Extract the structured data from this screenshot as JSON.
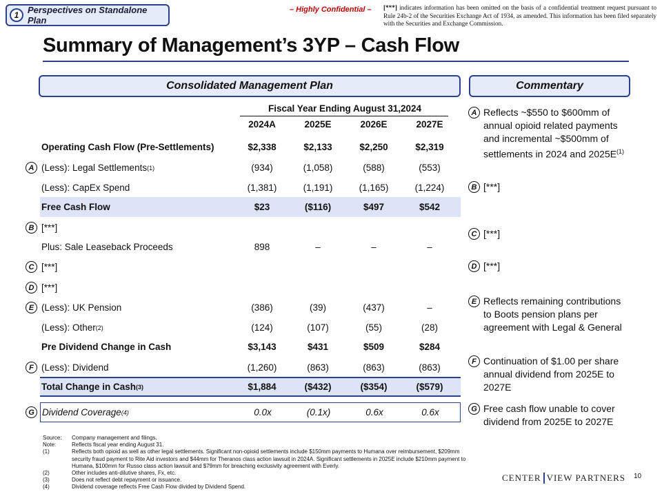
{
  "section": {
    "number": "1",
    "label": "Perspectives on Standalone Plan"
  },
  "confidential": "– Highly Confidential –",
  "notice": {
    "marker": "[***]",
    "text": " indicates information has been omitted on the basis of a confidential treatment request pursuant to Rule 24b-2 of the Securities Exchange Act of 1934, as amended. This information has been filed separately with the Securities and Exchange Commission."
  },
  "title": "Summary of Management’s 3YP – Cash Flow",
  "plan_header": "Consolidated Management Plan",
  "commentary_header": "Commentary",
  "fiscal_year_header": "Fiscal Year Ending August 31,2024",
  "columns": [
    "2024A",
    "2025E",
    "2026E",
    "2027E"
  ],
  "rows": [
    {
      "marker": "",
      "label": "Operating Cash Flow (Pre-Settlements)",
      "sup": "",
      "values": [
        "$2,338",
        "$2,133",
        "$2,250",
        "$2,319"
      ]
    },
    {
      "marker": "A",
      "label": "(Less): Legal Settlements",
      "sup": "(1)",
      "values": [
        "(934)",
        "(1,058)",
        "(588)",
        "(553)"
      ]
    },
    {
      "marker": "",
      "label": "(Less): CapEx Spend",
      "sup": "",
      "values": [
        "(1,381)",
        "(1,191)",
        "(1,165)",
        "(1,224)"
      ]
    },
    {
      "marker": "",
      "label": "Free Cash Flow",
      "sup": "",
      "values": [
        "$23",
        "($116)",
        "$497",
        "$542"
      ]
    },
    {
      "marker": "B",
      "label": "[***]",
      "sup": "",
      "values": [
        "",
        "",
        "",
        ""
      ]
    },
    {
      "marker": "",
      "label": "Plus: Sale Leaseback Proceeds",
      "sup": "",
      "values": [
        "898",
        "–",
        "–",
        "–"
      ]
    },
    {
      "marker": "C",
      "label": "[***]",
      "sup": "",
      "values": [
        "",
        "",
        "",
        ""
      ]
    },
    {
      "marker": "D",
      "label": "[***]",
      "sup": "",
      "values": [
        "",
        "",
        "",
        ""
      ]
    },
    {
      "marker": "E",
      "label": "(Less): UK Pension",
      "sup": "",
      "values": [
        "(386)",
        "(39)",
        "(437)",
        "–"
      ]
    },
    {
      "marker": "",
      "label": "(Less): Other",
      "sup": "(2)",
      "values": [
        "(124)",
        "(107)",
        "(55)",
        "(28)"
      ]
    },
    {
      "marker": "",
      "label": "Pre Dividend Change in Cash",
      "sup": "",
      "values": [
        "$3,143",
        "$431",
        "$509",
        "$284"
      ]
    },
    {
      "marker": "F",
      "label": "(Less): Dividend",
      "sup": "",
      "values": [
        "(1,260)",
        "(863)",
        "(863)",
        "(863)"
      ]
    },
    {
      "marker": "",
      "label": "Total Change in Cash",
      "sup": "(3)",
      "values": [
        "$1,884",
        "($432)",
        "($354)",
        "($579)"
      ]
    },
    {
      "marker": "G",
      "label": "Dividend Coverage",
      "sup": "(4)",
      "values": [
        "0.0x",
        "(0.1x)",
        "0.6x",
        "0.6x"
      ]
    }
  ],
  "commentary": [
    {
      "marker": "A",
      "text": "Reflects ~$550 to $600mm of annual opioid related payments and incremental ~$500mm of settlements in 2024 and 2025E",
      "sup": "(1)"
    },
    {
      "marker": "B",
      "text": "[***]",
      "sup": ""
    },
    {
      "marker": "C",
      "text": "[***]",
      "sup": ""
    },
    {
      "marker": "D",
      "text": "[***]",
      "sup": ""
    },
    {
      "marker": "E",
      "text": "Reflects remaining contributions to Boots pension plans per agreement with Legal & General",
      "sup": ""
    },
    {
      "marker": "F",
      "text": "Continuation of $1.00 per share annual dividend from 2025E to 2027E",
      "sup": ""
    },
    {
      "marker": "G",
      "text": "Free cash flow unable to cover dividend from 2025E to 2027E",
      "sup": ""
    }
  ],
  "footnotes": [
    {
      "key": "Source:",
      "text": "Company management and filings."
    },
    {
      "key": "Note:",
      "text": "Reflects fiscal year ending August 31."
    },
    {
      "key": "(1)",
      "text": "Reflects both opioid as well as other legal settlements. Significant non-opioid settlements include $150mm payments to Humana over reimbursement, $209mm security fraud payment to Rite Aid investors and $44mm for Theranos class action lawsuit in 2024A. Significant settlements in 2025E include $210mm payment to Humana, $100mm for Russo class action lawsuit and $79mm for breaching exclusivity agreement with Everly."
    },
    {
      "key": "(2)",
      "text": "Other includes anti-dilutive shares, Fx, etc."
    },
    {
      "key": "(3)",
      "text": "Does not reflect debt repayment or issuance."
    },
    {
      "key": "(4)",
      "text": "Dividend coverage reflects Free Cash Flow divided by Dividend Spend."
    }
  ],
  "brand": {
    "left": "CENTER",
    "right": "VIEW PARTNERS"
  },
  "page_number": "10",
  "colors": {
    "accent": "#2b3f8f",
    "shade": "#dde4f7",
    "confidential": "#c00000"
  }
}
